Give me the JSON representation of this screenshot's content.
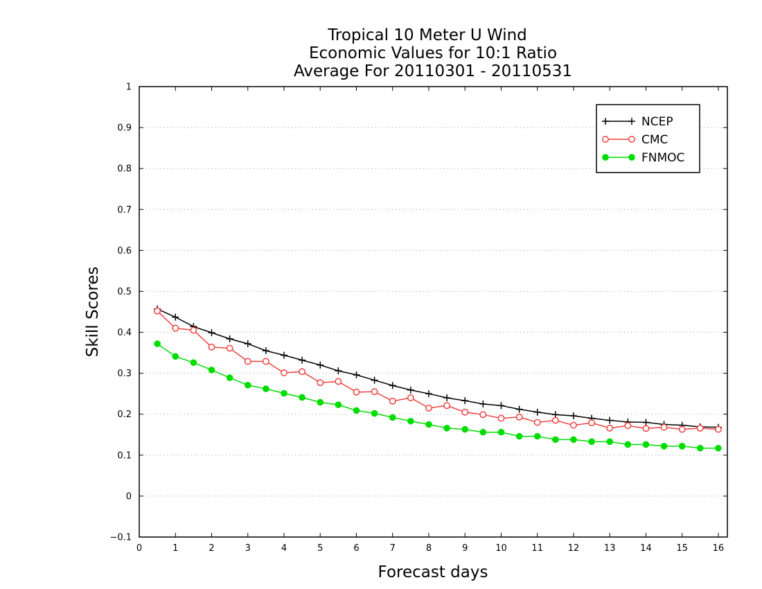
{
  "chart_data": {
    "type": "line",
    "title": [
      "Tropical 10 Meter U Wind",
      "Economic Values for 10:1 Ratio",
      "Average For 20110301 - 20110531"
    ],
    "xlabel": "Forecast days",
    "ylabel": "Skill Scores",
    "xlim": [
      0,
      16.25
    ],
    "ylim": [
      -0.1,
      1
    ],
    "xticks": [
      0,
      1,
      2,
      3,
      4,
      5,
      6,
      7,
      8,
      9,
      10,
      11,
      12,
      13,
      14,
      15,
      16
    ],
    "yticks": [
      -0.1,
      0,
      0.1,
      0.2,
      0.3,
      0.4,
      0.5,
      0.6,
      0.7,
      0.8,
      0.9,
      1
    ],
    "ytick_labels": [
      "−0.1",
      "0",
      "0.1",
      "0.2",
      "0.3",
      "0.4",
      "0.5",
      "0.6",
      "0.7",
      "0.8",
      "0.9",
      "1"
    ],
    "grid": "horizontal dotted",
    "legend_position": "top-right",
    "x": [
      0.5,
      1,
      1.5,
      2,
      2.5,
      3,
      3.5,
      4,
      4.5,
      5,
      5.5,
      6,
      6.5,
      7,
      7.5,
      8,
      8.5,
      9,
      9.5,
      10,
      10.5,
      11,
      11.5,
      12,
      12.5,
      13,
      13.5,
      14,
      14.5,
      15,
      15.5,
      16
    ],
    "series": [
      {
        "name": "NCEP",
        "color": "#000000",
        "marker": "plus",
        "values": [
          0.457,
          0.437,
          0.414,
          0.399,
          0.384,
          0.372,
          0.355,
          0.344,
          0.332,
          0.32,
          0.306,
          0.296,
          0.283,
          0.27,
          0.259,
          0.25,
          0.24,
          0.233,
          0.225,
          0.221,
          0.212,
          0.205,
          0.199,
          0.196,
          0.19,
          0.185,
          0.181,
          0.18,
          0.175,
          0.173,
          0.169,
          0.168
        ]
      },
      {
        "name": "CMC",
        "color": "#f04040",
        "marker": "open-circle",
        "values": [
          0.452,
          0.41,
          0.405,
          0.364,
          0.361,
          0.329,
          0.329,
          0.301,
          0.304,
          0.277,
          0.28,
          0.254,
          0.255,
          0.232,
          0.24,
          0.215,
          0.221,
          0.205,
          0.199,
          0.19,
          0.193,
          0.18,
          0.185,
          0.173,
          0.179,
          0.166,
          0.172,
          0.165,
          0.168,
          0.163,
          0.166,
          0.163
        ]
      },
      {
        "name": "FNMOC",
        "color": "#00dd00",
        "marker": "filled-circle",
        "values": [
          0.372,
          0.341,
          0.326,
          0.308,
          0.289,
          0.271,
          0.262,
          0.251,
          0.241,
          0.229,
          0.223,
          0.209,
          0.202,
          0.192,
          0.183,
          0.175,
          0.166,
          0.163,
          0.156,
          0.156,
          0.146,
          0.146,
          0.138,
          0.138,
          0.133,
          0.133,
          0.126,
          0.126,
          0.122,
          0.122,
          0.117,
          0.117
        ]
      }
    ]
  }
}
